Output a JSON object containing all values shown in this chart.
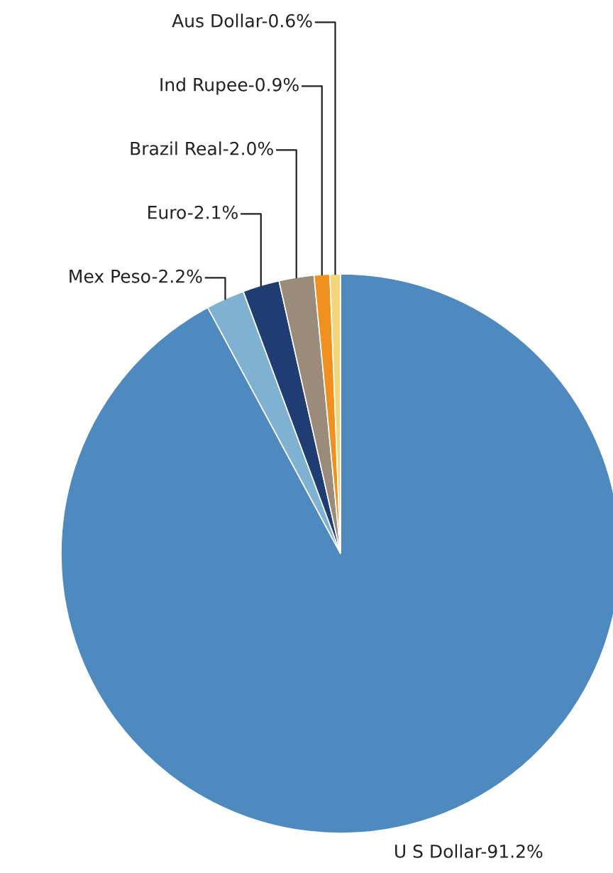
{
  "chart_data": {
    "type": "pie",
    "categories": [
      "U S Dollar",
      "Mex Peso",
      "Euro",
      "Brazil Real",
      "Ind Rupee",
      "Aus Dollar"
    ],
    "values": [
      91.2,
      2.2,
      2.1,
      2.0,
      0.9,
      0.6
    ],
    "value_labels": [
      "91.2%",
      "2.2%",
      "2.1%",
      "2.0%",
      "0.9%",
      "0.6%"
    ],
    "colors": [
      "#4e8abf",
      "#7fb2d2",
      "#1f3d73",
      "#9a8b7a",
      "#f0901f",
      "#f3d57a"
    ],
    "legend": false
  }
}
